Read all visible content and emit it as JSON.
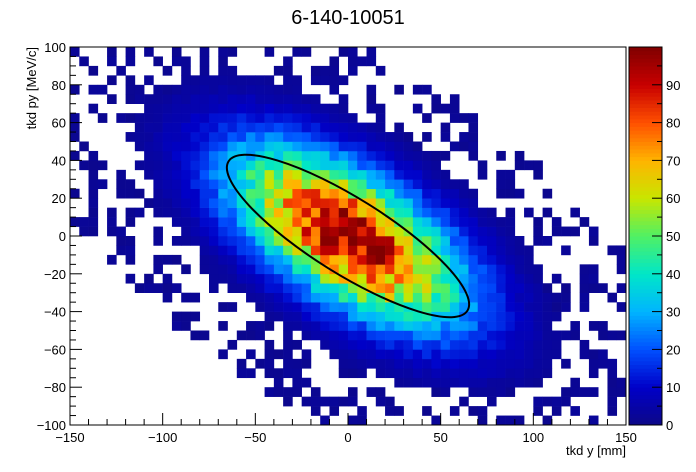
{
  "chart_data": {
    "type": "heatmap",
    "title": "6-140-10051",
    "xlabel": "tkd y [mm]",
    "ylabel": "tkd py [MeV/c]",
    "xlim": [
      -150,
      150
    ],
    "ylim": [
      -100,
      100
    ],
    "x_ticks": [
      -150,
      -100,
      -50,
      0,
      50,
      100,
      150
    ],
    "y_ticks": [
      -100,
      -80,
      -60,
      -40,
      -20,
      0,
      20,
      40,
      60,
      80,
      100
    ],
    "z_range": [
      0,
      100
    ],
    "z_ticks": [
      0,
      10,
      20,
      30,
      40,
      50,
      60,
      70,
      80,
      90
    ],
    "colormap": "kBird/rainbow",
    "colors": {
      "stops": [
        "#0d0887",
        "#0000c8",
        "#0050ff",
        "#00b4ff",
        "#00e6c8",
        "#50f064",
        "#c8e600",
        "#ffb400",
        "#ff5000",
        "#c80000",
        "#800000"
      ]
    },
    "bins": {
      "nx": 60,
      "ny": 40
    },
    "distribution": {
      "center": [
        0,
        0
      ],
      "correlation": "negative",
      "peak": 95
    },
    "ellipse": {
      "center": [
        0,
        0
      ],
      "semi_major": 40,
      "semi_minor": 20,
      "angle_deg": -32,
      "color": "#000000"
    },
    "grid": false
  }
}
